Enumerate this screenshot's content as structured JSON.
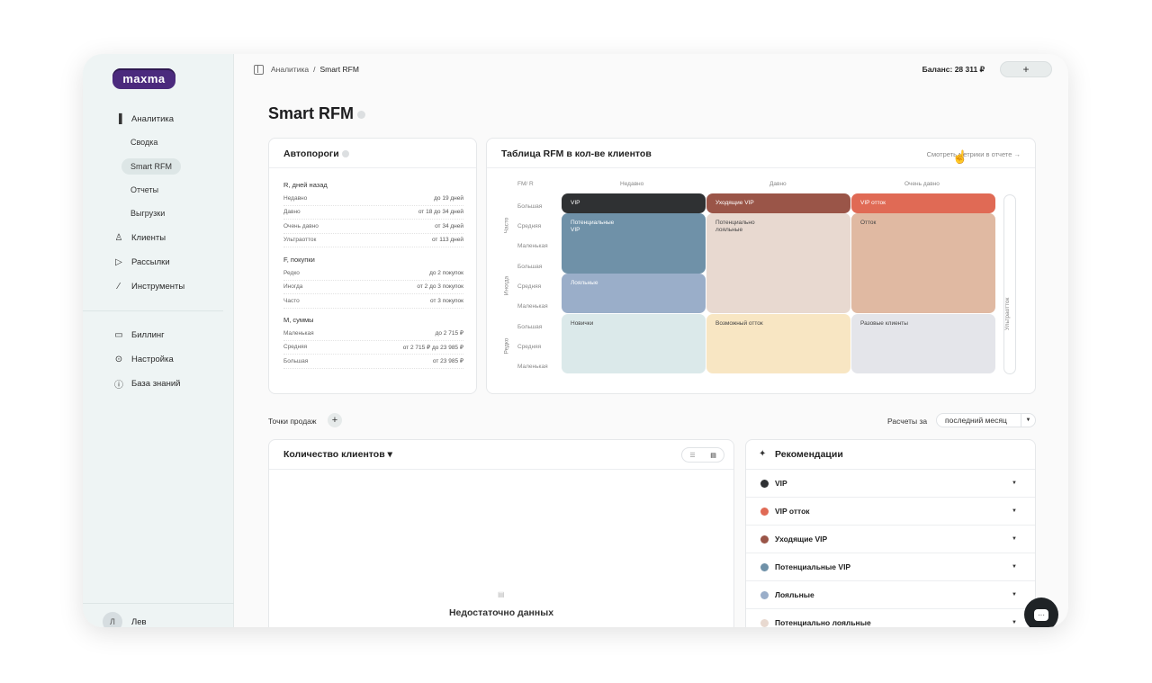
{
  "sidebar": {
    "logo": "maxma",
    "analytics": "Аналитика",
    "sub": [
      "Сводка",
      "Smart RFM",
      "Отчеты",
      "Выгрузки"
    ],
    "clients": "Клиенты",
    "mailings": "Рассылки",
    "tools": "Инструменты",
    "billing": "Биллинг",
    "settings": "Настройка",
    "kb": "База знаний",
    "user_name": "Лев",
    "user_initial": "Л"
  },
  "topbar": {
    "crumb_root": "Аналитика",
    "crumb_sep": "/",
    "crumb_current": "Smart RFM",
    "balance": "Баланс: 28 311 ₽",
    "add": "+"
  },
  "page": {
    "title": "Smart RFM"
  },
  "thresholds": {
    "title": "Автопороги",
    "groups": [
      {
        "title": "R, дней назад",
        "rows": [
          [
            "Недавно",
            "до 19 дней"
          ],
          [
            "Давно",
            "от 18 до 34 дней"
          ],
          [
            "Очень давно",
            "от 34 дней"
          ],
          [
            "Ультраотток",
            "от 113 дней"
          ]
        ]
      },
      {
        "title": "F, покупки",
        "rows": [
          [
            "Редко",
            "до 2 покупок"
          ],
          [
            "Иногда",
            "от 2 до 3 покупок"
          ],
          [
            "Часто",
            "от 3 покупок"
          ]
        ]
      },
      {
        "title": "M, суммы",
        "rows": [
          [
            "Маленькая",
            "до 2 715 ₽"
          ],
          [
            "Средняя",
            "от 2 715 ₽ до 23 985 ₽"
          ],
          [
            "Большая",
            "от 23 985 ₽"
          ]
        ]
      }
    ]
  },
  "rfm": {
    "title": "Таблица RFM в кол-ве клиентов",
    "link": "Смотреть метрики в отчете →",
    "corner": "FM/ R",
    "cols": [
      "Недавно",
      "Давно",
      "Очень давно"
    ],
    "groups": [
      "Часто",
      "Иногда",
      "Редко"
    ],
    "rows": [
      "Большая",
      "Средняя",
      "Маленькая",
      "Большая",
      "Средняя",
      "Маленькая",
      "Большая",
      "Средняя",
      "Маленькая"
    ],
    "segments": {
      "vip": "VIP",
      "leaving_vip": "Уходящие VIP",
      "vip_churn": "VIP отток",
      "potential_vip": "Потенциальные VIP",
      "potential_loyal": "Потенциально лояльные",
      "churn": "Отток",
      "loyal": "Лояльные",
      "newbies": "Новички",
      "possible_churn": "Возможный отток",
      "one_time": "Разовые клиенты"
    },
    "ultra": "Ультраотток",
    "colors": {
      "vip": "#2f3133",
      "leaving_vip": "#9a5548",
      "vip_churn": "#e06a55",
      "potential_vip": "#6f91a8",
      "potential_loyal": "#e8d9d0",
      "churn": "#e0b9a2",
      "loyal": "#9aaec9",
      "newbies": "#dbe9ea",
      "possible_churn": "#f8e6c3",
      "one_time": "#e4e5ea"
    }
  },
  "pos": {
    "label": "Точки продаж",
    "add": "+"
  },
  "calc": {
    "label": "Расчеты за",
    "period": "последний месяц",
    "arrow": "▼"
  },
  "clients_card": {
    "title": "Количество клиентов ▾",
    "toggle_a": "☰",
    "toggle_b": "▤",
    "empty_icon": "▤",
    "empty": "Недостаточно данных"
  },
  "recs": {
    "title": "Рекомендации",
    "spark": "✦",
    "caret": "▼",
    "items": [
      {
        "label": "VIP",
        "color": "#2f3133"
      },
      {
        "label": "VIP отток",
        "color": "#e06a55"
      },
      {
        "label": "Уходящие VIP",
        "color": "#9a5548"
      },
      {
        "label": "Потенциальные VIP",
        "color": "#6f91a8"
      },
      {
        "label": "Лояльные",
        "color": "#9aaec9"
      },
      {
        "label": "Потенциально лояльные",
        "color": "#e8d9d0"
      }
    ]
  },
  "chat": {
    "icon": "···"
  }
}
